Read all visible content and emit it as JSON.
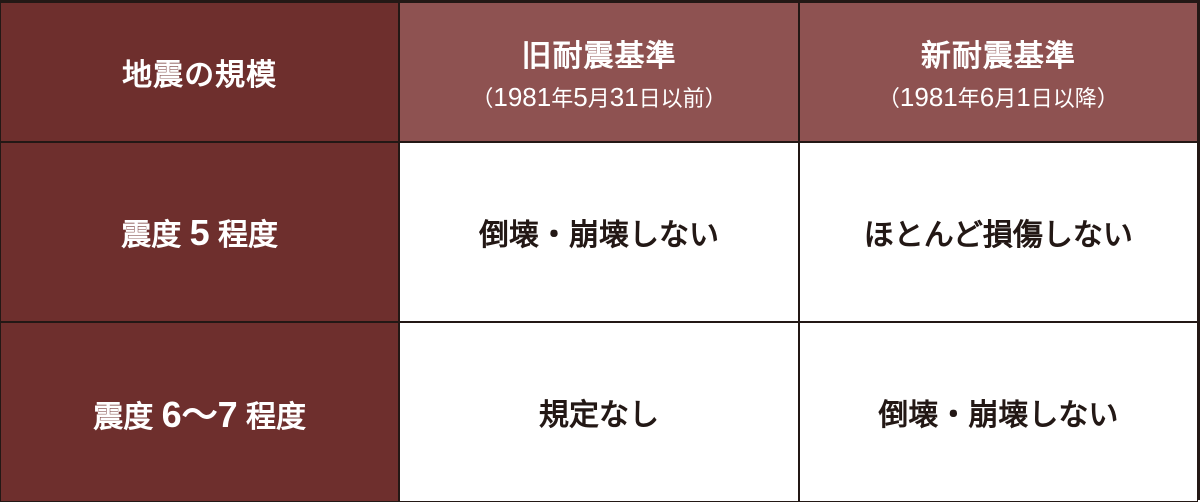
{
  "colors": {
    "header_dark_bg": "#6e2f2d",
    "header_light_bg": "#8e5251",
    "row_header_bg": "#6e2f2d",
    "body_bg": "#ffffff",
    "border": "#231815",
    "header_text": "#ffffff",
    "body_text": "#231815"
  },
  "layout": {
    "header_row_height": 140,
    "body_row_height": 180
  },
  "header": {
    "col1": "地震の規模",
    "col2_main": "旧耐震基準",
    "col2_sub_prefix": "（",
    "col2_sub_year": "1981",
    "col2_sub_mid1": "年",
    "col2_sub_month": "5",
    "col2_sub_mid2": "月",
    "col2_sub_day": "31",
    "col2_sub_suffix": "日以前）",
    "col3_main": "新耐震基準",
    "col3_sub_prefix": "（",
    "col3_sub_year": "1981",
    "col3_sub_mid1": "年",
    "col3_sub_month": "6",
    "col3_sub_mid2": "月",
    "col3_sub_day": "1",
    "col3_sub_suffix": "日以降）"
  },
  "rows": [
    {
      "scale_prefix": "震度",
      "scale_num": "5",
      "scale_suffix": "程度",
      "old": "倒壊・崩壊しない",
      "new": "ほとんど損傷しない"
    },
    {
      "scale_prefix": "震度",
      "scale_num": "6～7",
      "scale_suffix": "程度",
      "old": "規定なし",
      "new": "倒壊・崩壊しない"
    }
  ]
}
